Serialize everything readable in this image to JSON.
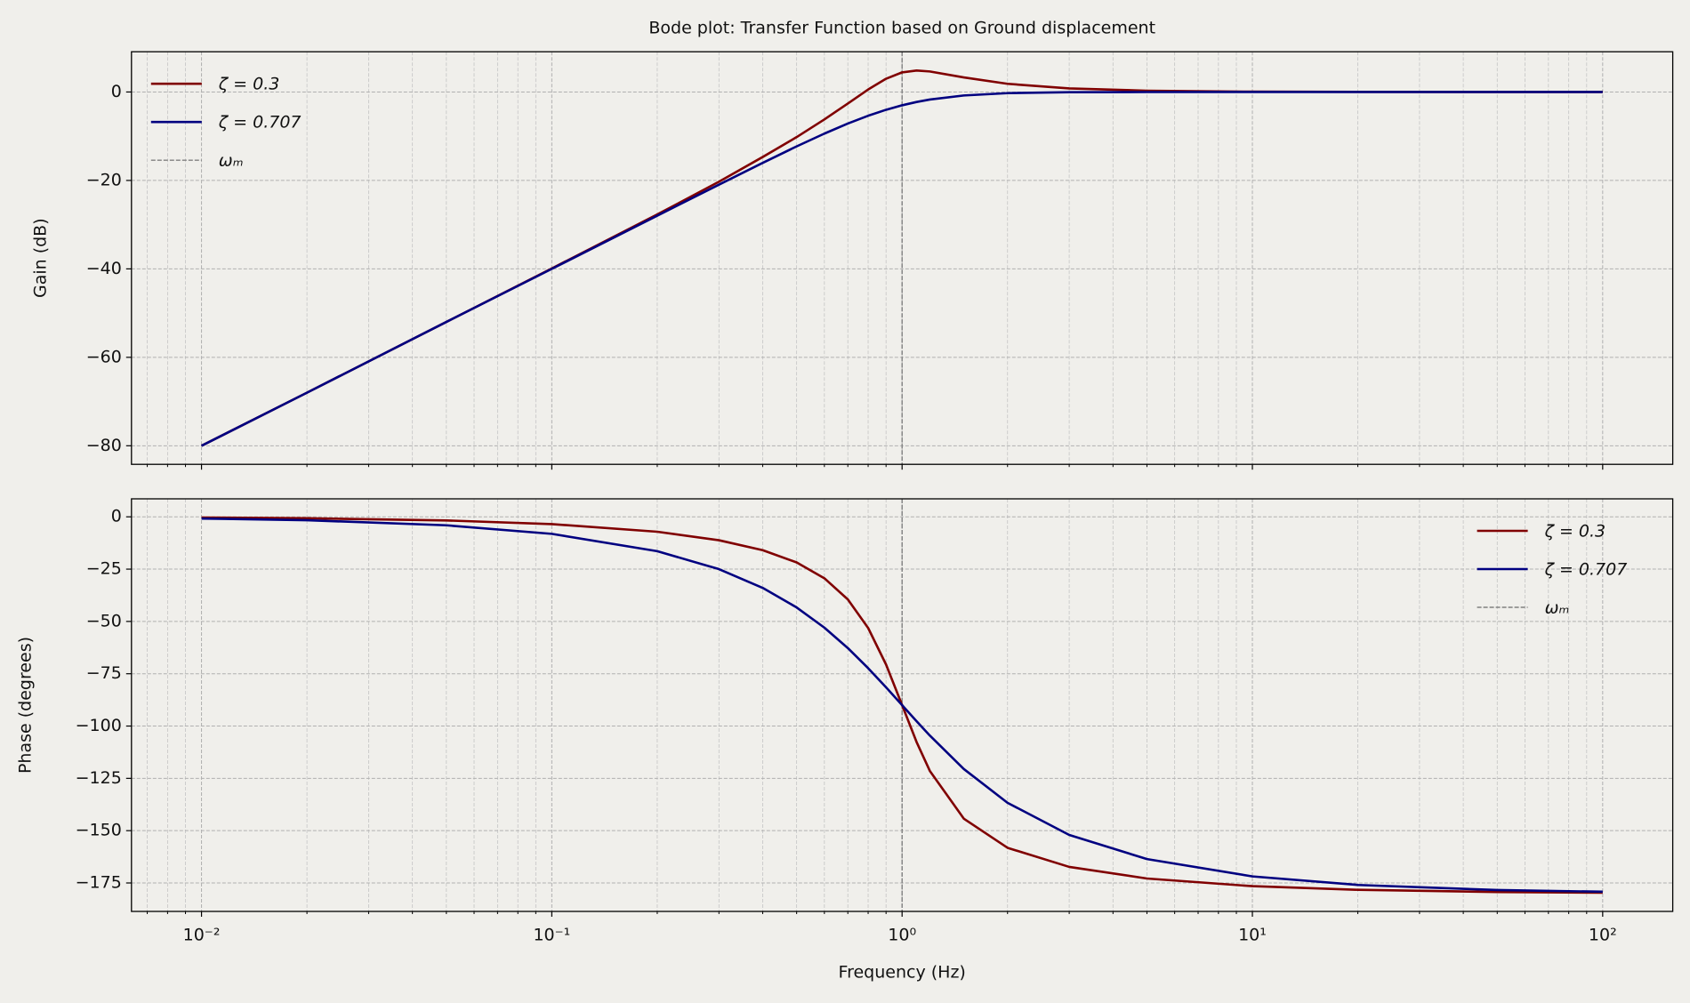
{
  "chart_data": [
    {
      "type": "line",
      "title": "Bode plot: Transfer Function based on Ground displacement",
      "ylabel": "Gain (dB)",
      "xscale": "log",
      "x": [
        0.01,
        0.02,
        0.05,
        0.1,
        0.2,
        0.3,
        0.4,
        0.5,
        0.6,
        0.7,
        0.8,
        0.9,
        1.0,
        1.1,
        1.2,
        1.5,
        2,
        3,
        5,
        10,
        20,
        50,
        100
      ],
      "series": [
        {
          "name": "ζ = 0.3",
          "color": "#800000",
          "values": [
            -80.0,
            -68.0,
            -52.0,
            -39.9,
            -27.7,
            -20.3,
            -14.7,
            -10.2,
            -6.2,
            -2.6,
            0.56,
            3.0,
            4.44,
            4.85,
            4.64,
            3.29,
            1.85,
            0.8,
            0.29,
            0.07,
            0.02,
            0.0,
            0.0
          ]
        },
        {
          "name": "ζ = 0.707",
          "color": "#000080",
          "values": [
            -80.0,
            -68.0,
            -52.0,
            -40.0,
            -27.97,
            -20.96,
            -16.03,
            -12.3,
            -9.41,
            -7.13,
            -5.37,
            -4.02,
            -3.01,
            -2.26,
            -1.71,
            -0.79,
            -0.26,
            -0.05,
            -0.01,
            0.0,
            0.0,
            0.0,
            0.0
          ]
        }
      ],
      "vline": {
        "name": "ωₘ",
        "x": 1,
        "color": "#808080"
      },
      "xlim": [
        0.00631,
        158.5
      ],
      "xticks": [
        0.01,
        0.1,
        1,
        10,
        100
      ],
      "show_xticklabels": false,
      "xminorticks": [
        0.007,
        0.008,
        0.009,
        0.02,
        0.03,
        0.04,
        0.05,
        0.06,
        0.07,
        0.08,
        0.09,
        0.2,
        0.3,
        0.4,
        0.5,
        0.6,
        0.7,
        0.8,
        0.9,
        2,
        3,
        4,
        5,
        6,
        7,
        8,
        9,
        20,
        30,
        40,
        50,
        60,
        70,
        80,
        90
      ],
      "ylim": [
        -84.2,
        9.1
      ],
      "yticks": [
        {
          "value": 0,
          "label": "0"
        },
        {
          "value": -20,
          "label": "−20"
        },
        {
          "value": -40,
          "label": "−40"
        },
        {
          "value": -60,
          "label": "−60"
        },
        {
          "value": -80,
          "label": "−80"
        }
      ],
      "grid": true,
      "legend": "upper left"
    },
    {
      "type": "line",
      "xlabel": "Frequency (Hz)",
      "ylabel": "Phase (degrees)",
      "xscale": "log",
      "x": [
        0.01,
        0.02,
        0.05,
        0.1,
        0.2,
        0.3,
        0.4,
        0.5,
        0.6,
        0.7,
        0.8,
        0.9,
        1.0,
        1.1,
        1.2,
        1.5,
        2,
        3,
        5,
        10,
        20,
        50,
        100
      ],
      "series": [
        {
          "name": "ζ = 0.3",
          "color": "#800000",
          "values": [
            -0.34,
            -0.69,
            -1.72,
            -3.47,
            -7.13,
            -11.19,
            -15.95,
            -21.8,
            -29.36,
            -39.47,
            -53.13,
            -70.61,
            -90.0,
            -107.65,
            -121.43,
            -144.25,
            -158.2,
            -167.32,
            -172.87,
            -176.53,
            -178.28,
            -179.31,
            -179.66
          ]
        },
        {
          "name": "ζ = 0.707",
          "color": "#000080",
          "values": [
            -0.81,
            -1.62,
            -4.05,
            -8.13,
            -16.41,
            -25.0,
            -33.96,
            -43.31,
            -52.97,
            -62.74,
            -72.35,
            -81.51,
            -90.0,
            -97.69,
            -104.54,
            -120.51,
            -136.69,
            -152.06,
            -163.59,
            -171.87,
            -175.95,
            -178.38,
            -179.19
          ]
        }
      ],
      "vline": {
        "name": "ωₘ",
        "x": 1,
        "color": "#808080"
      },
      "xlim": [
        0.00631,
        158.5
      ],
      "xticks": [
        {
          "value": 0.01,
          "label": "10⁻²"
        },
        {
          "value": 0.1,
          "label": "10⁻¹"
        },
        {
          "value": 1,
          "label": "10⁰"
        },
        {
          "value": 10,
          "label": "10¹"
        },
        {
          "value": 100,
          "label": "10²"
        }
      ],
      "show_xticklabels": true,
      "xminorticks": [
        0.007,
        0.008,
        0.009,
        0.02,
        0.03,
        0.04,
        0.05,
        0.06,
        0.07,
        0.08,
        0.09,
        0.2,
        0.3,
        0.4,
        0.5,
        0.6,
        0.7,
        0.8,
        0.9,
        2,
        3,
        4,
        5,
        6,
        7,
        8,
        9,
        20,
        30,
        40,
        50,
        60,
        70,
        80,
        90
      ],
      "ylim": [
        -188.6,
        8.6
      ],
      "yticks": [
        {
          "value": 0,
          "label": "0"
        },
        {
          "value": -25,
          "label": "−25"
        },
        {
          "value": -50,
          "label": "−50"
        },
        {
          "value": -75,
          "label": "−75"
        },
        {
          "value": -100,
          "label": "−100"
        },
        {
          "value": -125,
          "label": "−125"
        },
        {
          "value": -150,
          "label": "−150"
        },
        {
          "value": -175,
          "label": "−175"
        }
      ],
      "grid": true,
      "legend": "upper right"
    }
  ]
}
